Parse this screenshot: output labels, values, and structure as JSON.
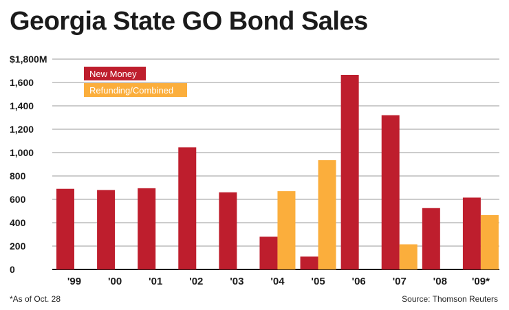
{
  "chart_data": {
    "type": "bar",
    "title": "Georgia State GO Bond Sales",
    "xlabel": "",
    "ylabel": "",
    "ylim": [
      0,
      1800
    ],
    "yticks": [
      0,
      200,
      400,
      600,
      800,
      1000,
      1200,
      1400,
      1600,
      1800
    ],
    "ytick_labels": [
      "0",
      "200",
      "400",
      "600",
      "800",
      "1,000",
      "1,200",
      "1,400",
      "1,600",
      "$1,800M"
    ],
    "categories": [
      "'99",
      "'00",
      "'01",
      "'02",
      "'03",
      "'04",
      "'05",
      "'06",
      "'07",
      "'08",
      "'09*"
    ],
    "series": [
      {
        "name": "New Money",
        "color": "#be1e2d",
        "values": [
          690,
          680,
          695,
          1045,
          660,
          280,
          110,
          1665,
          1320,
          525,
          615
        ]
      },
      {
        "name": "Refunding/Combined",
        "color": "#fbae3c",
        "values": [
          0,
          0,
          0,
          0,
          0,
          670,
          935,
          0,
          215,
          0,
          465
        ]
      }
    ],
    "grid": true,
    "legend_position": "top-left"
  },
  "footnote": "*As of Oct. 28",
  "source": "Source: Thomson Reuters"
}
